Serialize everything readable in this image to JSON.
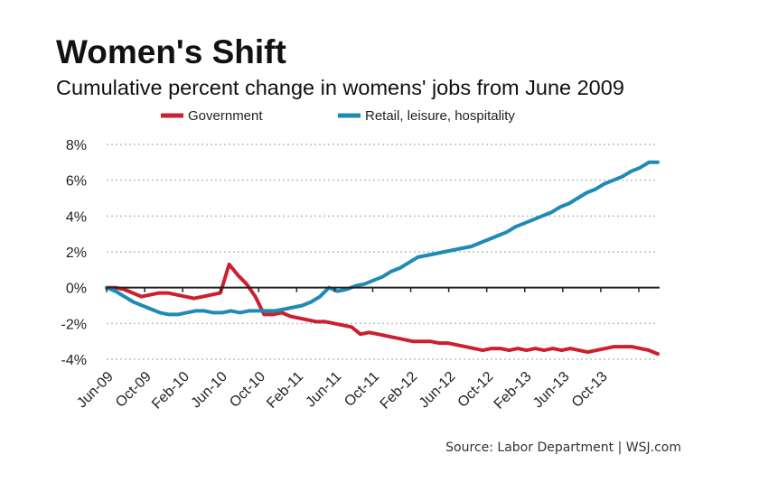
{
  "chart_data": {
    "type": "line",
    "title": "Women's Shift",
    "subtitle": "Cumulative percent change in womens' jobs from June 2009",
    "source": "Source: Labor Department  |  WSJ.com",
    "xlabel": "",
    "ylabel": "",
    "ylim": [
      -4,
      8
    ],
    "y_ticks": [
      8,
      6,
      4,
      2,
      0,
      -2,
      -4
    ],
    "y_tick_labels": [
      "8%",
      "6%",
      "4%",
      "2%",
      "0%",
      "-2%",
      "-4%"
    ],
    "x_tick_labels": [
      "Jun-09",
      "Oct-09",
      "Feb-10",
      "Jun-10",
      "Oct-10",
      "Feb-11",
      "Jun-11",
      "Oct-11",
      "Feb-12",
      "Jun-12",
      "Oct-12",
      "Feb-13",
      "Jun-13",
      "Oct-13"
    ],
    "grid": true,
    "legend_position": "top",
    "series": [
      {
        "name": "Government",
        "color": "#cc1f2f",
        "values": [
          0,
          0,
          -0.1,
          -0.3,
          -0.5,
          -0.4,
          -0.3,
          -0.3,
          -0.4,
          -0.5,
          -0.6,
          -0.5,
          -0.4,
          -0.3,
          1.3,
          0.7,
          0.2,
          -0.5,
          -1.5,
          -1.5,
          -1.4,
          -1.6,
          -1.7,
          -1.8,
          -1.9,
          -1.9,
          -2.0,
          -2.1,
          -2.2,
          -2.6,
          -2.5,
          -2.6,
          -2.7,
          -2.8,
          -2.9,
          -3.0,
          -3.0,
          -3.0,
          -3.1,
          -3.1,
          -3.2,
          -3.3,
          -3.4,
          -3.5,
          -3.4,
          -3.4,
          -3.5,
          -3.4,
          -3.5,
          -3.4,
          -3.5,
          -3.4,
          -3.5,
          -3.4,
          -3.5,
          -3.6,
          -3.5,
          -3.4,
          -3.3,
          -3.3,
          -3.3,
          -3.4,
          -3.5,
          -3.7
        ]
      },
      {
        "name": "Retail, leisure, hospitality",
        "color": "#1f8ab4",
        "values": [
          0,
          -0.2,
          -0.5,
          -0.8,
          -1.0,
          -1.2,
          -1.4,
          -1.5,
          -1.5,
          -1.4,
          -1.3,
          -1.3,
          -1.4,
          -1.4,
          -1.3,
          -1.4,
          -1.3,
          -1.3,
          -1.3,
          -1.3,
          -1.2,
          -1.1,
          -1.0,
          -0.8,
          -0.5,
          0.0,
          -0.2,
          -0.1,
          0.1,
          0.2,
          0.4,
          0.6,
          0.9,
          1.1,
          1.4,
          1.7,
          1.8,
          1.9,
          2.0,
          2.1,
          2.2,
          2.3,
          2.5,
          2.7,
          2.9,
          3.1,
          3.4,
          3.6,
          3.8,
          4.0,
          4.2,
          4.5,
          4.7,
          5.0,
          5.3,
          5.5,
          5.8,
          6.0,
          6.2,
          6.5,
          6.7,
          7.0,
          7.0
        ]
      }
    ]
  },
  "colors": {
    "axis": "#222222",
    "grid": "#bdbdbd",
    "background": "#ffffff"
  }
}
